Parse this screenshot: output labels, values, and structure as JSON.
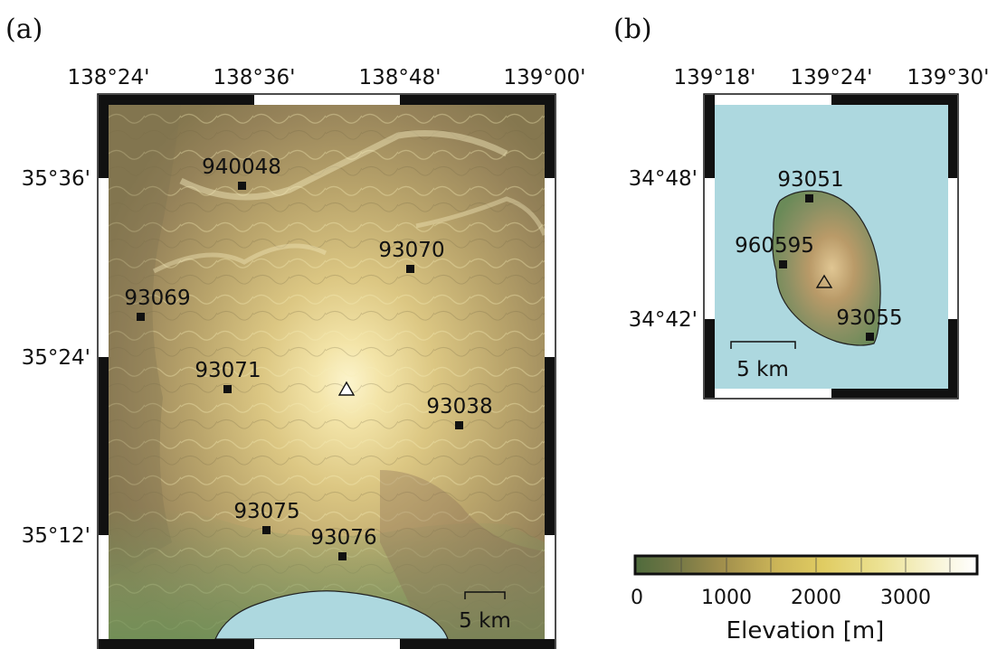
{
  "panel_a": {
    "label": "(a)",
    "lon_ticks": [
      "138°24'",
      "138°36'",
      "138°48'",
      "139°00'"
    ],
    "lat_ticks": [
      "35°36'",
      "35°24'",
      "35°12'"
    ],
    "stations": [
      {
        "id": "940048"
      },
      {
        "id": "93070"
      },
      {
        "id": "93069"
      },
      {
        "id": "93071"
      },
      {
        "id": "93038"
      },
      {
        "id": "93075"
      },
      {
        "id": "93076"
      }
    ],
    "scale_label": "5 km"
  },
  "panel_b": {
    "label": "(b)",
    "lon_ticks": [
      "139°18'",
      "139°24'",
      "139°30'"
    ],
    "lat_ticks": [
      "34°48'",
      "34°42'"
    ],
    "stations": [
      {
        "id": "93051"
      },
      {
        "id": "960595"
      },
      {
        "id": "93055"
      }
    ],
    "scale_label": "5 km"
  },
  "colorbar": {
    "ticks": [
      "0",
      "1000",
      "2000",
      "3000"
    ],
    "title": "Elevation [m]",
    "colors": [
      "#4f6b3c",
      "#7e7b46",
      "#b39a50",
      "#d8c45f",
      "#ede48f",
      "#fbf7d8",
      "#ffffff"
    ]
  },
  "water_color": "#add8df"
}
